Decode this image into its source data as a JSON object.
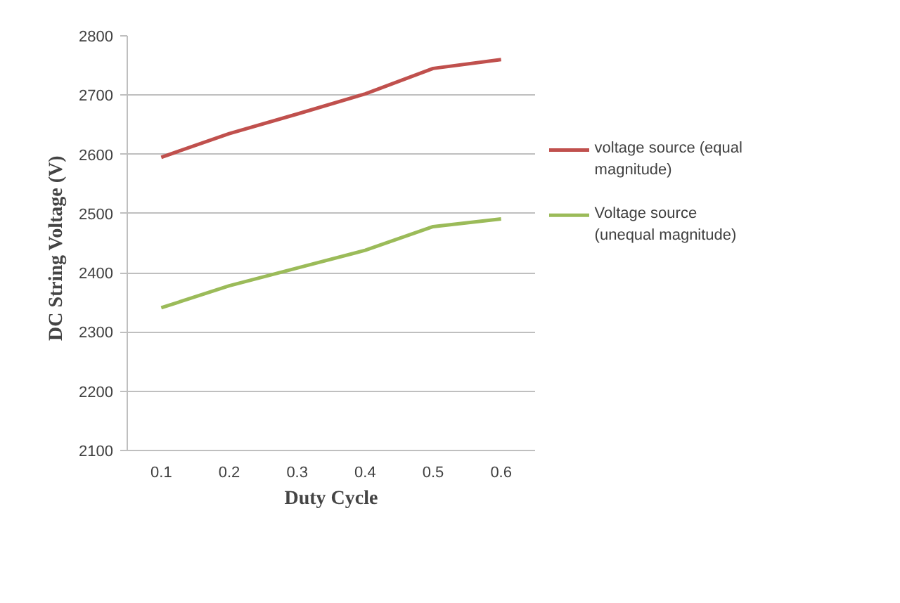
{
  "chart_data": {
    "type": "line",
    "xlabel": "Duty Cycle",
    "ylabel": "DC  String Voltage  (V)",
    "categories": [
      "0.1",
      "0.2",
      "0.3",
      "0.4",
      "0.5",
      "0.6"
    ],
    "series": [
      {
        "name": "voltage source (equal magnitude)",
        "color": "#c0504d",
        "values": [
          2595,
          2635,
          2668,
          2702,
          2745,
          2760
        ]
      },
      {
        "name": "Voltage source (unequal magnitude)",
        "color": "#9bbb59",
        "values": [
          2341,
          2378,
          2408,
          2438,
          2478,
          2491
        ]
      }
    ],
    "ylim": [
      2100,
      2800
    ],
    "yticks": [
      2100,
      2200,
      2300,
      2400,
      2500,
      2600,
      2700,
      2800
    ],
    "grid": "y",
    "legend": "right",
    "marker": "none",
    "line_style": "solid"
  }
}
